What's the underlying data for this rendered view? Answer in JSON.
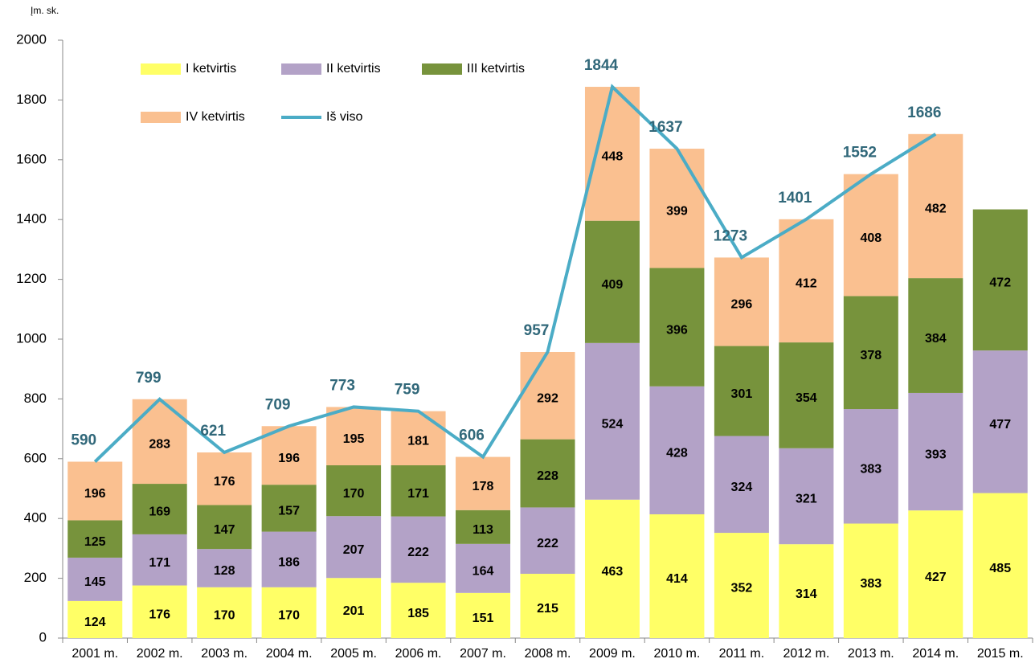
{
  "chart_data": {
    "type": "bar",
    "stacked": true,
    "unit_label": "Įm. sk.",
    "categories": [
      "2001 m.",
      "2002 m.",
      "2003 m.",
      "2004 m.",
      "2005 m.",
      "2006 m.",
      "2007 m.",
      "2008 m.",
      "2009 m.",
      "2010 m.",
      "2011 m.",
      "2012 m.",
      "2013 m.",
      "2014 m.",
      "2015 m."
    ],
    "series": [
      {
        "name": "I ketvirtis",
        "color": "#ffff66",
        "values": [
          124,
          176,
          170,
          170,
          201,
          185,
          151,
          215,
          463,
          414,
          352,
          314,
          383,
          427,
          485
        ]
      },
      {
        "name": "II ketvirtis",
        "color": "#b3a2c7",
        "values": [
          145,
          171,
          128,
          186,
          207,
          222,
          164,
          222,
          524,
          428,
          324,
          321,
          383,
          393,
          477
        ]
      },
      {
        "name": "III ketvirtis",
        "color": "#77933c",
        "values": [
          125,
          169,
          147,
          157,
          170,
          171,
          113,
          228,
          409,
          396,
          301,
          354,
          378,
          384,
          472
        ]
      },
      {
        "name": "IV ketvirtis",
        "color": "#fac090",
        "values": [
          196,
          283,
          176,
          196,
          195,
          181,
          178,
          292,
          448,
          399,
          296,
          412,
          408,
          482,
          null
        ]
      },
      {
        "name": "Iš viso",
        "type": "line",
        "color": "#4bacc6",
        "label_color": "#31687a",
        "values": [
          590,
          799,
          621,
          709,
          773,
          759,
          606,
          957,
          1844,
          1637,
          1273,
          1401,
          1552,
          1686,
          null
        ]
      }
    ],
    "ylim": [
      0,
      2000
    ],
    "yticks": [
      0,
      200,
      400,
      600,
      800,
      1000,
      1200,
      1400,
      1600,
      1800,
      2000
    ],
    "grid": false
  }
}
